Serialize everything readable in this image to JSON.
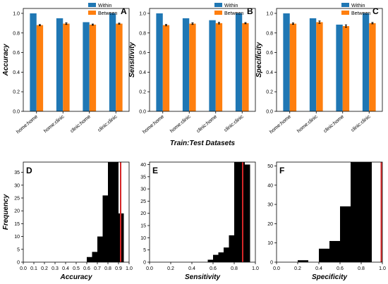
{
  "chart_data": [
    {
      "type": "bar",
      "panel_label": "A",
      "ylabel": "Accuracy",
      "xlabel": "",
      "categories": [
        "home:home",
        "home:clinic",
        "clinic:home",
        "clinic:clinic"
      ],
      "series": [
        {
          "name": "Within",
          "color": "#1f77b4",
          "values": [
            1.0,
            0.95,
            0.91,
            1.0
          ],
          "errors": [
            0,
            0,
            0,
            0
          ]
        },
        {
          "name": "Between",
          "color": "#ff7f0e",
          "values": [
            0.88,
            0.895,
            0.885,
            0.895
          ],
          "errors": [
            0.006,
            0.008,
            0.006,
            0.005
          ]
        }
      ],
      "ylim": [
        0,
        1.05
      ],
      "yticks": [
        "0.0",
        "0.2",
        "0.4",
        "0.6",
        "0.8",
        "1.0"
      ],
      "legend": "top-right"
    },
    {
      "type": "bar",
      "panel_label": "B",
      "ylabel": "Sensitivity",
      "xlabel": "Train:Test Datasets",
      "categories": [
        "home:home",
        "home:clinic",
        "clinic:home",
        "clinic:clinic"
      ],
      "series": [
        {
          "name": "Within",
          "color": "#1f77b4",
          "values": [
            1.0,
            0.95,
            0.93,
            1.0
          ],
          "errors": [
            0,
            0,
            0,
            0
          ]
        },
        {
          "name": "Between",
          "color": "#ff7f0e",
          "values": [
            0.88,
            0.895,
            0.9,
            0.9
          ],
          "errors": [
            0.007,
            0.008,
            0.008,
            0.006
          ]
        }
      ],
      "ylim": [
        0,
        1.05
      ],
      "yticks": [
        "0.0",
        "0.2",
        "0.4",
        "0.6",
        "0.8",
        "1.0"
      ],
      "legend": "top-right"
    },
    {
      "type": "bar",
      "panel_label": "C",
      "ylabel": "Specificity",
      "xlabel": "",
      "categories": [
        "home:home",
        "home:clinic",
        "clinic:home",
        "clinic:clinic"
      ],
      "series": [
        {
          "name": "Within",
          "color": "#1f77b4",
          "values": [
            1.0,
            0.95,
            0.885,
            1.0
          ],
          "errors": [
            0,
            0,
            0,
            0
          ]
        },
        {
          "name": "Between",
          "color": "#ff7f0e",
          "values": [
            0.895,
            0.91,
            0.87,
            0.9
          ],
          "errors": [
            0.007,
            0.012,
            0.012,
            0.007
          ]
        }
      ],
      "ylim": [
        0,
        1.05
      ],
      "yticks": [
        "0.0",
        "0.2",
        "0.4",
        "0.6",
        "0.8",
        "1.0"
      ],
      "legend": "top-right"
    },
    {
      "type": "histogram",
      "panel_label": "D",
      "xlabel": "Accuracy",
      "ylabel": "Frequency",
      "bin_edges": [
        0.6,
        0.65,
        0.7,
        0.75,
        0.8,
        0.85,
        0.9,
        0.95,
        1.0
      ],
      "counts": [
        2,
        4,
        10,
        26,
        39,
        39,
        19,
        0
      ],
      "xlim": [
        0.0,
        1.0
      ],
      "ylim": [
        0,
        39
      ],
      "xticks": [
        "0.0",
        "0.1",
        "0.2",
        "0.3",
        "0.4",
        "0.5",
        "0.6",
        "0.7",
        "0.8",
        "0.9",
        "1.0"
      ],
      "yticks": [
        "0",
        "5",
        "10",
        "15",
        "20",
        "25",
        "30",
        "35"
      ],
      "reference_line": {
        "x": 0.92,
        "color": "#d62728"
      }
    },
    {
      "type": "histogram",
      "panel_label": "E",
      "xlabel": "Sensitivity",
      "ylabel": "",
      "bin_edges": [
        0.55,
        0.6,
        0.65,
        0.7,
        0.75,
        0.8,
        0.85,
        0.9,
        0.95,
        1.0
      ],
      "counts": [
        1,
        3,
        4,
        6,
        11,
        41,
        41,
        40,
        0
      ],
      "xlim": [
        0.0,
        1.0
      ],
      "ylim": [
        0,
        41
      ],
      "xticks": [
        "0.0",
        "0.2",
        "0.4",
        "0.6",
        "0.8",
        "1.0"
      ],
      "yticks": [
        "0",
        "5",
        "10",
        "15",
        "20",
        "25",
        "30",
        "35",
        "40"
      ],
      "reference_line": {
        "x": 0.88,
        "color": "#d62728"
      }
    },
    {
      "type": "histogram",
      "panel_label": "F",
      "xlabel": "Specificity",
      "ylabel": "",
      "bin_edges": [
        0.2,
        0.3,
        0.4,
        0.5,
        0.6,
        0.7,
        0.8,
        0.9,
        1.0
      ],
      "counts": [
        1,
        0,
        7,
        11,
        29,
        52,
        52,
        0
      ],
      "xlim": [
        0.0,
        1.0
      ],
      "ylim": [
        0,
        52
      ],
      "xticks": [
        "0.0",
        "0.2",
        "0.4",
        "0.6",
        "0.8",
        "1.0"
      ],
      "yticks": [
        "0",
        "10",
        "20",
        "30",
        "40",
        "50"
      ],
      "reference_line": {
        "x": 0.99,
        "color": "#d62728"
      }
    }
  ]
}
